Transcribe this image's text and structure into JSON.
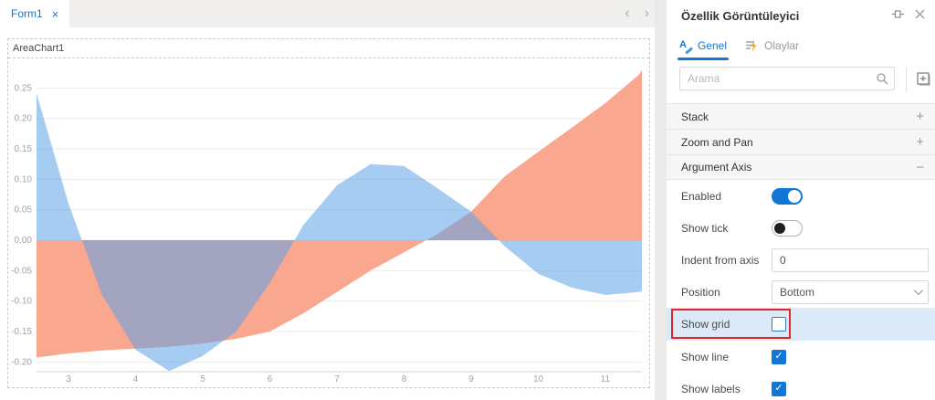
{
  "designer": {
    "tab_label": "Form1",
    "widget_title": "AreaChart1"
  },
  "icons": {
    "close": "×",
    "back": "‹",
    "forward": "›",
    "check": "✓"
  },
  "inspector": {
    "title": "Özellik Görüntüleyici",
    "tabs": [
      {
        "label": "Genel",
        "active": true
      },
      {
        "label": "Olaylar",
        "active": false
      }
    ],
    "search_placeholder": "Arama",
    "sections": [
      {
        "label": "Stack",
        "state": "collapsed",
        "icon": "+"
      },
      {
        "label": "Zoom and Pan",
        "state": "collapsed",
        "icon": "+"
      },
      {
        "label": "Argument Axis",
        "state": "expanded",
        "icon": "−"
      }
    ],
    "properties": [
      {
        "label": "Enabled",
        "type": "toggle",
        "value": true
      },
      {
        "label": "Show tick",
        "type": "toggle",
        "value": false
      },
      {
        "label": "Indent from axis",
        "type": "input",
        "value": "0"
      },
      {
        "label": "Position",
        "type": "select",
        "value": "Bottom"
      },
      {
        "label": "Show grid",
        "type": "checkbox",
        "value": false,
        "highlighted": true
      },
      {
        "label": "Show line",
        "type": "checkbox",
        "value": true
      },
      {
        "label": "Show labels",
        "type": "checkbox",
        "value": true
      }
    ],
    "accent_color": "#1177D7",
    "highlight_row_color": "#DCEAF7",
    "annotation_color": "#E2252B"
  },
  "chart_data": {
    "type": "area",
    "title": "AreaChart1",
    "baseline": 0,
    "grid": "horizontal-only",
    "legend": "none",
    "xlim": [
      2.52,
      11.55
    ],
    "ylim": [
      -0.225,
      0.3
    ],
    "x_ticks": [
      3,
      4,
      5,
      6,
      7,
      8,
      9,
      10,
      11
    ],
    "y_ticks": [
      0.25,
      0.2,
      0.15,
      0.1,
      0.05,
      0.0,
      -0.05,
      -0.1,
      -0.15,
      -0.2
    ],
    "x": [
      2.5,
      3,
      3.5,
      4,
      4.5,
      5,
      5.5,
      6,
      6.5,
      7,
      7.5,
      8,
      8.5,
      9,
      9.5,
      10,
      10.5,
      11,
      11.5,
      11.6
    ],
    "series": [
      {
        "name": "salmon-area",
        "color": "#F9A78E",
        "opacity": 1,
        "values": [
          -0.193,
          -0.186,
          -0.181,
          -0.178,
          -0.175,
          -0.17,
          -0.162,
          -0.15,
          -0.12,
          -0.085,
          -0.05,
          -0.02,
          0.01,
          0.047,
          0.105,
          0.145,
          0.185,
          0.225,
          0.272,
          0.29
        ]
      },
      {
        "name": "blue-area",
        "color": "#5DA2E7",
        "opacity": 0.55,
        "values": [
          0.25,
          0.06,
          -0.09,
          -0.18,
          -0.215,
          -0.19,
          -0.15,
          -0.07,
          0.025,
          0.09,
          0.125,
          0.122,
          0.085,
          0.047,
          -0.01,
          -0.055,
          -0.078,
          -0.09,
          -0.085,
          -0.083
        ]
      }
    ]
  }
}
